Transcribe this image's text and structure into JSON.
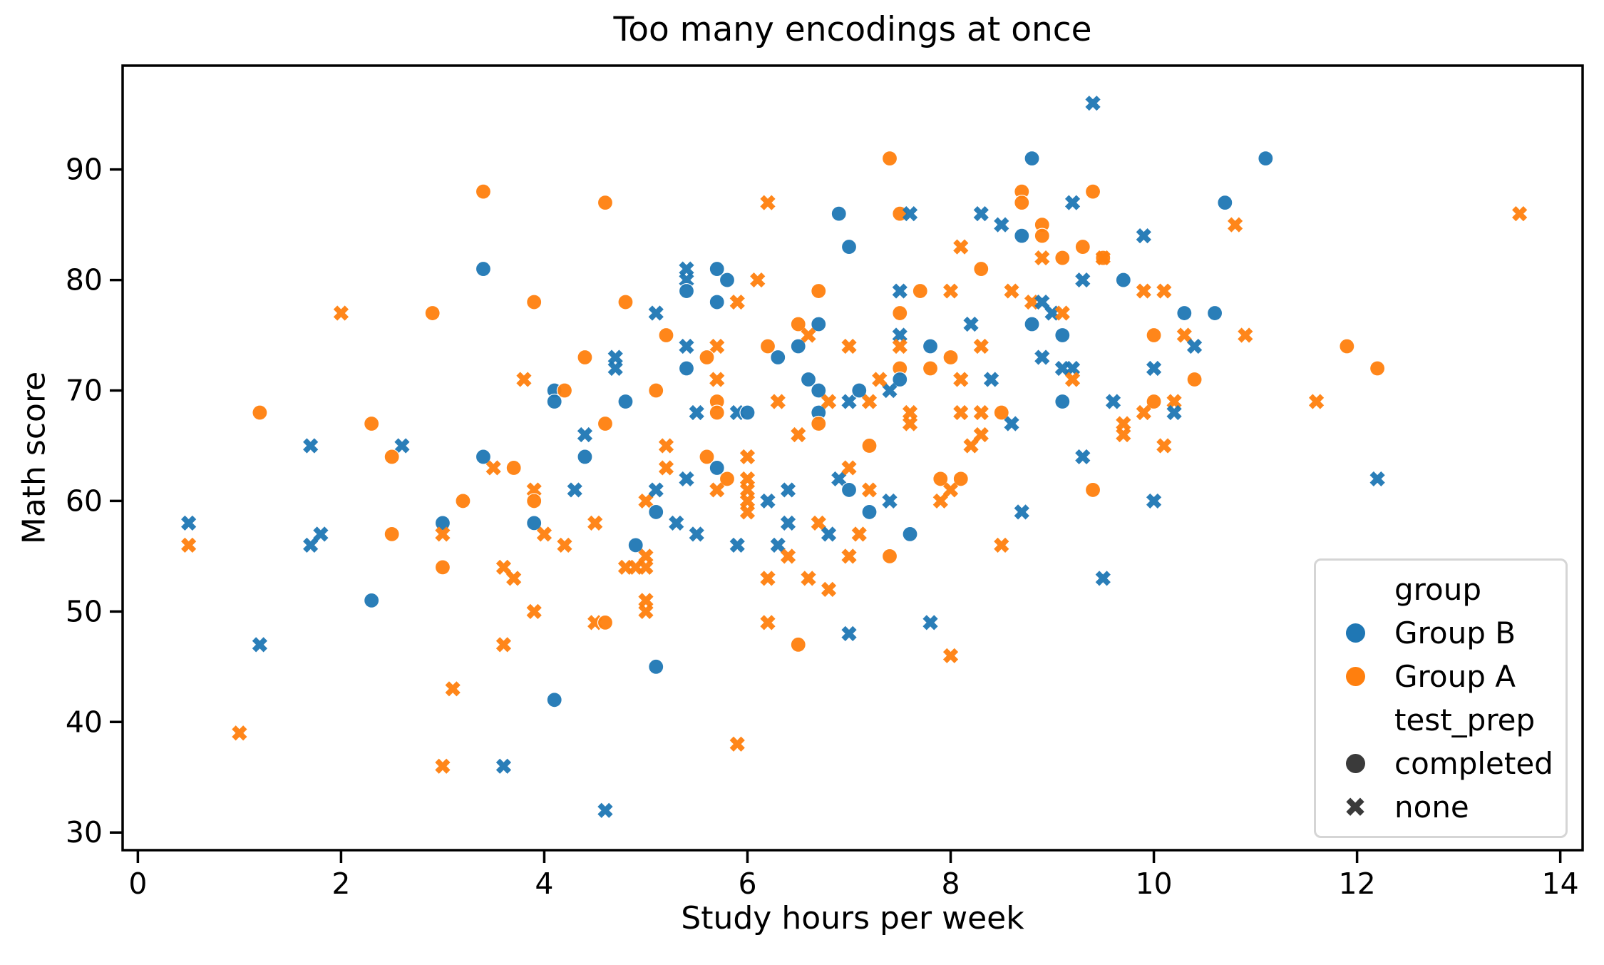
{
  "chart_data": {
    "type": "scatter",
    "title": "Too many encodings at once",
    "xlabel": "Study hours per week",
    "ylabel": "Math score",
    "xlim": [
      -0.15,
      14.22
    ],
    "ylim": [
      28.4,
      99.4
    ],
    "xticks": [
      0,
      2,
      4,
      6,
      8,
      10,
      12,
      14
    ],
    "yticks": [
      30,
      40,
      50,
      60,
      70,
      80,
      90
    ],
    "grid": false,
    "legend_position": "lower right",
    "colors": {
      "group_b": "#1f77b4",
      "group_a": "#ff7f0e",
      "neutral": "#3a3a3a"
    },
    "series_encoding": "points are [study_hours, math_score, group(A|B), test_prep(c=completed|n=none)]",
    "points": [
      [
        3.4,
        88,
        "A",
        "c"
      ],
      [
        3.4,
        81,
        "B",
        "c"
      ],
      [
        2.0,
        77,
        "A",
        "n"
      ],
      [
        2.9,
        77,
        "A",
        "c"
      ],
      [
        4.6,
        87,
        "A",
        "c"
      ],
      [
        6.2,
        87,
        "A",
        "n"
      ],
      [
        6.9,
        86,
        "B",
        "c"
      ],
      [
        7.0,
        83,
        "B",
        "c"
      ],
      [
        5.4,
        81,
        "B",
        "n"
      ],
      [
        5.4,
        80,
        "B",
        "n"
      ],
      [
        5.4,
        79,
        "B",
        "c"
      ],
      [
        5.7,
        81,
        "B",
        "c"
      ],
      [
        5.8,
        80,
        "B",
        "c"
      ],
      [
        6.1,
        80,
        "A",
        "n"
      ],
      [
        5.7,
        78,
        "B",
        "c"
      ],
      [
        5.9,
        78,
        "A",
        "n"
      ],
      [
        3.9,
        78,
        "A",
        "c"
      ],
      [
        4.8,
        78,
        "A",
        "c"
      ],
      [
        5.1,
        77,
        "B",
        "n"
      ],
      [
        6.7,
        79,
        "A",
        "c"
      ],
      [
        9.4,
        96,
        "B",
        "n"
      ],
      [
        7.4,
        91,
        "A",
        "c"
      ],
      [
        8.8,
        91,
        "B",
        "c"
      ],
      [
        8.7,
        88,
        "A",
        "c"
      ],
      [
        8.7,
        87,
        "A",
        "c"
      ],
      [
        9.4,
        88,
        "A",
        "c"
      ],
      [
        9.2,
        87,
        "B",
        "n"
      ],
      [
        7.5,
        86,
        "A",
        "c"
      ],
      [
        7.6,
        86,
        "B",
        "n"
      ],
      [
        8.3,
        86,
        "B",
        "n"
      ],
      [
        8.5,
        85,
        "B",
        "n"
      ],
      [
        8.9,
        85,
        "A",
        "c"
      ],
      [
        8.9,
        84,
        "A",
        "c"
      ],
      [
        8.7,
        84,
        "B",
        "c"
      ],
      [
        8.1,
        83,
        "A",
        "n"
      ],
      [
        9.3,
        83,
        "A",
        "c"
      ],
      [
        9.5,
        82,
        "A",
        "c"
      ],
      [
        9.5,
        82,
        "A",
        "n"
      ],
      [
        8.9,
        82,
        "A",
        "n"
      ],
      [
        9.1,
        82,
        "A",
        "c"
      ],
      [
        9.9,
        84,
        "B",
        "n"
      ],
      [
        8.3,
        81,
        "A",
        "c"
      ],
      [
        9.3,
        80,
        "B",
        "n"
      ],
      [
        9.7,
        80,
        "B",
        "c"
      ],
      [
        7.5,
        79,
        "B",
        "n"
      ],
      [
        7.7,
        79,
        "A",
        "c"
      ],
      [
        8.0,
        79,
        "A",
        "n"
      ],
      [
        8.6,
        79,
        "A",
        "n"
      ],
      [
        9.9,
        79,
        "A",
        "n"
      ],
      [
        10.1,
        79,
        "A",
        "n"
      ],
      [
        8.8,
        78,
        "A",
        "n"
      ],
      [
        8.9,
        78,
        "B",
        "n"
      ],
      [
        9.0,
        77,
        "B",
        "n"
      ],
      [
        9.1,
        77,
        "A",
        "n"
      ],
      [
        7.5,
        77,
        "A",
        "c"
      ],
      [
        10.3,
        77,
        "B",
        "c"
      ],
      [
        10.6,
        77,
        "B",
        "c"
      ],
      [
        10.7,
        87,
        "B",
        "c"
      ],
      [
        11.1,
        91,
        "B",
        "c"
      ],
      [
        10.8,
        85,
        "A",
        "n"
      ],
      [
        13.6,
        86,
        "A",
        "n"
      ],
      [
        1.2,
        68,
        "A",
        "c"
      ],
      [
        2.3,
        67,
        "A",
        "c"
      ],
      [
        1.7,
        65,
        "B",
        "n"
      ],
      [
        2.6,
        65,
        "B",
        "n"
      ],
      [
        2.5,
        64,
        "A",
        "c"
      ],
      [
        3.4,
        64,
        "B",
        "c"
      ],
      [
        3.2,
        60,
        "A",
        "c"
      ],
      [
        0.5,
        58,
        "B",
        "n"
      ],
      [
        0.5,
        56,
        "A",
        "n"
      ],
      [
        1.8,
        57,
        "B",
        "n"
      ],
      [
        1.7,
        56,
        "B",
        "n"
      ],
      [
        2.5,
        57,
        "A",
        "c"
      ],
      [
        3.0,
        58,
        "B",
        "c"
      ],
      [
        3.0,
        57,
        "A",
        "n"
      ],
      [
        3.0,
        54,
        "A",
        "c"
      ],
      [
        5.2,
        75,
        "A",
        "c"
      ],
      [
        5.4,
        74,
        "B",
        "n"
      ],
      [
        5.7,
        74,
        "A",
        "n"
      ],
      [
        5.6,
        73,
        "A",
        "c"
      ],
      [
        6.2,
        74,
        "A",
        "c"
      ],
      [
        6.3,
        73,
        "B",
        "c"
      ],
      [
        6.5,
        74,
        "B",
        "c"
      ],
      [
        6.5,
        76,
        "A",
        "c"
      ],
      [
        6.7,
        76,
        "B",
        "c"
      ],
      [
        6.6,
        75,
        "A",
        "n"
      ],
      [
        4.4,
        73,
        "A",
        "c"
      ],
      [
        4.7,
        73,
        "B",
        "n"
      ],
      [
        4.7,
        72,
        "B",
        "n"
      ],
      [
        3.8,
        71,
        "A",
        "n"
      ],
      [
        4.1,
        70,
        "B",
        "c"
      ],
      [
        4.2,
        70,
        "A",
        "c"
      ],
      [
        4.1,
        69,
        "B",
        "c"
      ],
      [
        4.8,
        69,
        "B",
        "c"
      ],
      [
        5.1,
        70,
        "A",
        "c"
      ],
      [
        4.6,
        67,
        "A",
        "c"
      ],
      [
        4.4,
        66,
        "B",
        "n"
      ],
      [
        4.4,
        64,
        "B",
        "c"
      ],
      [
        3.5,
        63,
        "A",
        "n"
      ],
      [
        3.7,
        63,
        "A",
        "c"
      ],
      [
        3.9,
        61,
        "A",
        "n"
      ],
      [
        3.9,
        60,
        "A",
        "c"
      ],
      [
        4.3,
        61,
        "B",
        "n"
      ],
      [
        3.9,
        58,
        "B",
        "c"
      ],
      [
        4.0,
        57,
        "A",
        "n"
      ],
      [
        4.2,
        56,
        "A",
        "n"
      ],
      [
        4.5,
        58,
        "A",
        "n"
      ],
      [
        4.9,
        56,
        "B",
        "c"
      ],
      [
        5.0,
        55,
        "A",
        "n"
      ],
      [
        4.8,
        54,
        "A",
        "n"
      ],
      [
        4.9,
        54,
        "A",
        "n"
      ],
      [
        5.0,
        54,
        "A",
        "n"
      ],
      [
        5.0,
        60,
        "A",
        "n"
      ],
      [
        5.2,
        65,
        "A",
        "n"
      ],
      [
        5.2,
        63,
        "A",
        "n"
      ],
      [
        5.4,
        62,
        "B",
        "n"
      ],
      [
        5.1,
        61,
        "B",
        "n"
      ],
      [
        5.1,
        59,
        "B",
        "c"
      ],
      [
        5.3,
        58,
        "B",
        "n"
      ],
      [
        5.5,
        57,
        "B",
        "n"
      ],
      [
        5.6,
        64,
        "A",
        "c"
      ],
      [
        5.7,
        63,
        "B",
        "c"
      ],
      [
        5.8,
        62,
        "A",
        "c"
      ],
      [
        5.7,
        61,
        "A",
        "n"
      ],
      [
        5.7,
        71,
        "A",
        "n"
      ],
      [
        5.7,
        69,
        "A",
        "c"
      ],
      [
        5.7,
        68,
        "A",
        "c"
      ],
      [
        5.5,
        68,
        "B",
        "n"
      ],
      [
        5.9,
        68,
        "B",
        "n"
      ],
      [
        6.0,
        68,
        "B",
        "c"
      ],
      [
        6.3,
        69,
        "A",
        "n"
      ],
      [
        6.5,
        66,
        "A",
        "n"
      ],
      [
        6.6,
        71,
        "B",
        "c"
      ],
      [
        6.7,
        70,
        "B",
        "c"
      ],
      [
        6.7,
        68,
        "B",
        "c"
      ],
      [
        6.7,
        67,
        "A",
        "c"
      ],
      [
        6.8,
        69,
        "A",
        "n"
      ],
      [
        7.0,
        69,
        "B",
        "n"
      ],
      [
        7.0,
        74,
        "A",
        "n"
      ],
      [
        6.9,
        62,
        "B",
        "n"
      ],
      [
        7.0,
        61,
        "B",
        "c"
      ],
      [
        6.7,
        58,
        "A",
        "n"
      ],
      [
        6.8,
        57,
        "B",
        "n"
      ],
      [
        6.3,
        56,
        "B",
        "n"
      ],
      [
        6.4,
        55,
        "A",
        "n"
      ],
      [
        5.9,
        56,
        "B",
        "n"
      ],
      [
        6.2,
        53,
        "A",
        "n"
      ],
      [
        6.6,
        53,
        "A",
        "n"
      ],
      [
        6.8,
        52,
        "A",
        "n"
      ],
      [
        3.6,
        54,
        "A",
        "n"
      ],
      [
        3.7,
        53,
        "A",
        "n"
      ],
      [
        7.5,
        75,
        "B",
        "n"
      ],
      [
        7.5,
        74,
        "A",
        "n"
      ],
      [
        7.8,
        74,
        "B",
        "c"
      ],
      [
        8.0,
        73,
        "A",
        "c"
      ],
      [
        7.5,
        72,
        "A",
        "c"
      ],
      [
        7.8,
        72,
        "A",
        "c"
      ],
      [
        7.5,
        71,
        "B",
        "c"
      ],
      [
        7.4,
        70,
        "B",
        "n"
      ],
      [
        7.3,
        71,
        "A",
        "n"
      ],
      [
        7.1,
        70,
        "B",
        "c"
      ],
      [
        7.2,
        69,
        "A",
        "n"
      ],
      [
        8.1,
        71,
        "A",
        "n"
      ],
      [
        8.4,
        71,
        "B",
        "n"
      ],
      [
        8.3,
        74,
        "A",
        "n"
      ],
      [
        8.2,
        76,
        "B",
        "n"
      ],
      [
        8.8,
        76,
        "B",
        "c"
      ],
      [
        9.1,
        75,
        "B",
        "c"
      ],
      [
        8.9,
        73,
        "B",
        "n"
      ],
      [
        9.1,
        72,
        "B",
        "n"
      ],
      [
        9.2,
        72,
        "B",
        "n"
      ],
      [
        9.2,
        71,
        "A",
        "n"
      ],
      [
        9.1,
        69,
        "B",
        "c"
      ],
      [
        10.0,
        75,
        "A",
        "c"
      ],
      [
        10.3,
        75,
        "A",
        "n"
      ],
      [
        10.4,
        74,
        "B",
        "n"
      ],
      [
        10.0,
        72,
        "B",
        "n"
      ],
      [
        10.4,
        71,
        "A",
        "c"
      ],
      [
        9.6,
        69,
        "B",
        "n"
      ],
      [
        10.0,
        69,
        "A",
        "c"
      ],
      [
        10.2,
        69,
        "A",
        "n"
      ],
      [
        10.2,
        68,
        "B",
        "n"
      ],
      [
        9.9,
        68,
        "A",
        "n"
      ],
      [
        9.7,
        67,
        "A",
        "n"
      ],
      [
        9.7,
        66,
        "A",
        "n"
      ],
      [
        10.1,
        65,
        "A",
        "n"
      ],
      [
        9.3,
        64,
        "B",
        "n"
      ],
      [
        9.4,
        61,
        "A",
        "c"
      ],
      [
        10.0,
        60,
        "B",
        "n"
      ],
      [
        9.5,
        53,
        "B",
        "n"
      ],
      [
        8.5,
        56,
        "A",
        "n"
      ],
      [
        8.7,
        59,
        "B",
        "n"
      ],
      [
        7.2,
        61,
        "A",
        "n"
      ],
      [
        7.4,
        60,
        "B",
        "n"
      ],
      [
        7.2,
        59,
        "B",
        "c"
      ],
      [
        7.1,
        57,
        "A",
        "n"
      ],
      [
        7.0,
        55,
        "A",
        "n"
      ],
      [
        7.4,
        55,
        "A",
        "c"
      ],
      [
        7.6,
        57,
        "B",
        "c"
      ],
      [
        8.1,
        62,
        "A",
        "c"
      ],
      [
        7.9,
        62,
        "A",
        "c"
      ],
      [
        8.0,
        61,
        "A",
        "n"
      ],
      [
        7.9,
        60,
        "A",
        "n"
      ],
      [
        10.9,
        75,
        "A",
        "n"
      ],
      [
        11.9,
        74,
        "A",
        "c"
      ],
      [
        12.2,
        72,
        "A",
        "c"
      ],
      [
        11.6,
        69,
        "A",
        "n"
      ],
      [
        12.2,
        62,
        "B",
        "n"
      ],
      [
        2.3,
        51,
        "B",
        "c"
      ],
      [
        1.2,
        47,
        "B",
        "n"
      ],
      [
        3.1,
        43,
        "A",
        "n"
      ],
      [
        1.0,
        39,
        "A",
        "n"
      ],
      [
        3.0,
        36,
        "A",
        "n"
      ],
      [
        3.9,
        50,
        "A",
        "n"
      ],
      [
        3.6,
        47,
        "A",
        "n"
      ],
      [
        4.5,
        49,
        "A",
        "n"
      ],
      [
        4.6,
        49,
        "A",
        "c"
      ],
      [
        5.0,
        51,
        "A",
        "n"
      ],
      [
        5.0,
        50,
        "A",
        "n"
      ],
      [
        6.2,
        49,
        "A",
        "n"
      ],
      [
        7.0,
        48,
        "B",
        "n"
      ],
      [
        6.5,
        47,
        "A",
        "c"
      ],
      [
        5.1,
        45,
        "B",
        "c"
      ],
      [
        4.1,
        42,
        "B",
        "c"
      ],
      [
        5.9,
        38,
        "A",
        "n"
      ],
      [
        3.6,
        36,
        "B",
        "n"
      ],
      [
        4.6,
        32,
        "B",
        "n"
      ],
      [
        7.8,
        49,
        "B",
        "n"
      ],
      [
        8.0,
        46,
        "A",
        "n"
      ],
      [
        8.1,
        68,
        "A",
        "n"
      ],
      [
        8.3,
        68,
        "A",
        "n"
      ],
      [
        8.5,
        68,
        "A",
        "c"
      ],
      [
        8.6,
        67,
        "B",
        "n"
      ],
      [
        8.3,
        66,
        "A",
        "n"
      ],
      [
        8.2,
        65,
        "A",
        "n"
      ],
      [
        5.4,
        72,
        "B",
        "c"
      ],
      [
        7.0,
        63,
        "A",
        "n"
      ],
      [
        7.2,
        65,
        "A",
        "c"
      ],
      [
        7.6,
        68,
        "A",
        "n"
      ],
      [
        7.6,
        67,
        "A",
        "n"
      ],
      [
        6.0,
        61,
        "A",
        "n"
      ],
      [
        6.0,
        60,
        "A",
        "n"
      ],
      [
        6.0,
        59,
        "A",
        "n"
      ],
      [
        6.0,
        64,
        "A",
        "n"
      ],
      [
        6.4,
        58,
        "B",
        "n"
      ],
      [
        6.4,
        61,
        "B",
        "n"
      ],
      [
        6.2,
        60,
        "B",
        "n"
      ],
      [
        6.0,
        62,
        "A",
        "n"
      ]
    ]
  },
  "legend": {
    "group_header": "group",
    "group_b_label": "Group B",
    "group_a_label": "Group A",
    "prep_header": "test_prep",
    "completed_label": "completed",
    "none_label": "none",
    "none_glyph": "✖"
  }
}
